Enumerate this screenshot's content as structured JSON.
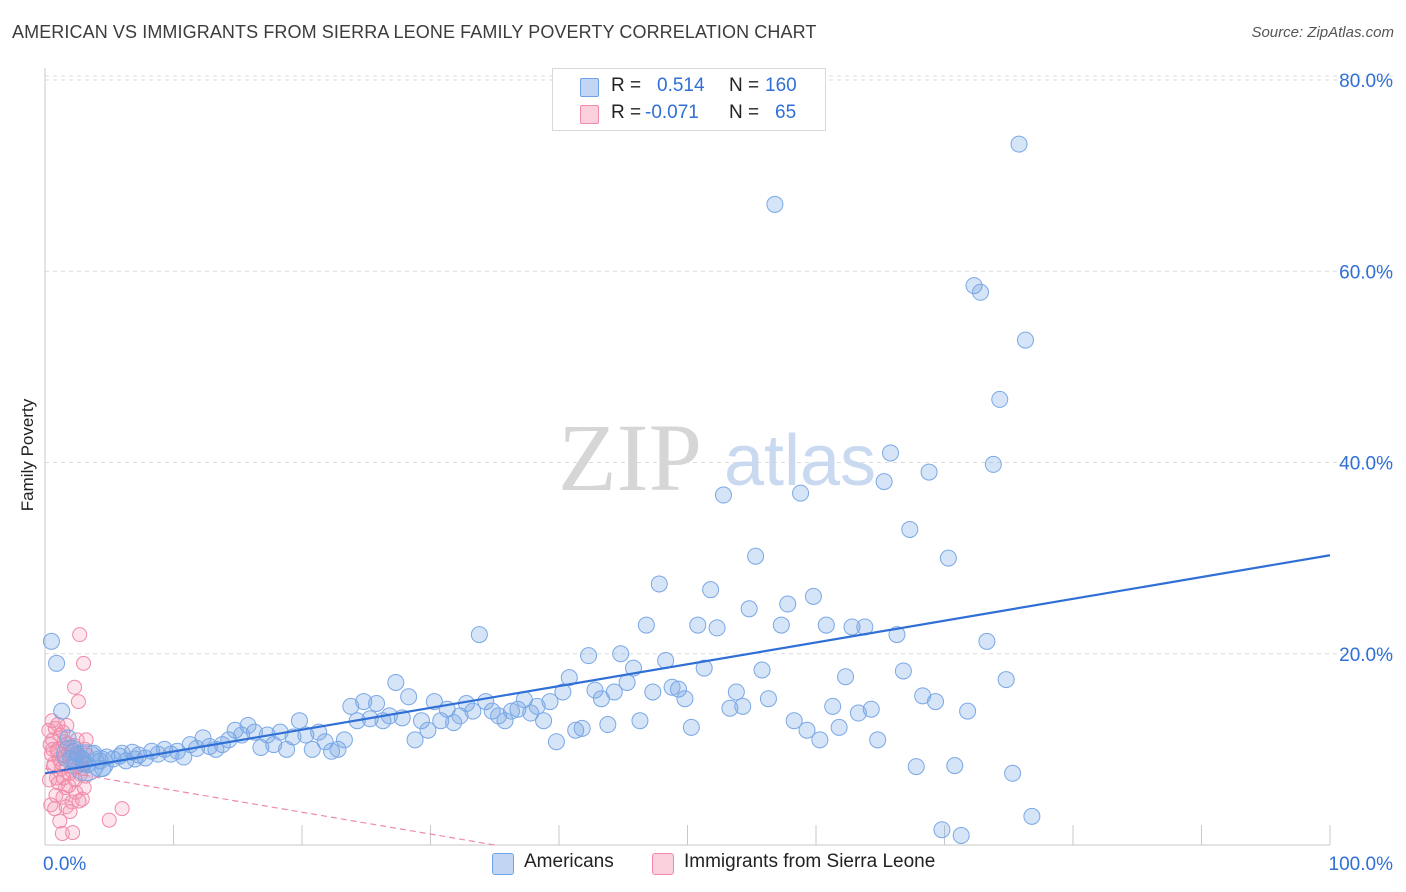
{
  "title": "AMERICAN VS IMMIGRANTS FROM SIERRA LEONE FAMILY POVERTY CORRELATION CHART",
  "source": "Source: ZipAtlas.com",
  "watermark": {
    "zip": "ZIP",
    "atlas": "atlas"
  },
  "legend_top": [
    {
      "r_label": "R =",
      "r_value": "0.514",
      "n_label": "N =",
      "n_value": "160",
      "color": "#6fa3e8"
    },
    {
      "r_label": "R =",
      "r_value": "-0.071",
      "n_label": "N =",
      "n_value": "65",
      "color": "#f08aa8"
    }
  ],
  "legend_bottom": [
    {
      "label": "Americans",
      "color": "#6fa3e8"
    },
    {
      "label": "Immigrants from Sierra Leone",
      "color": "#f08aa8"
    }
  ],
  "colors": {
    "blue": "#2f6fd6",
    "blue_fill": "rgba(120,165,230,0.30)",
    "pink": "#ee6f96",
    "pink_fill": "rgba(245,150,180,0.25)",
    "grid": "#dcdcdc"
  },
  "chart_data": {
    "type": "scatter",
    "title": "AMERICAN VS IMMIGRANTS FROM SIERRA LEONE FAMILY POVERTY CORRELATION CHART",
    "xlabel": "",
    "ylabel": "Family Poverty",
    "xlim": [
      0,
      100
    ],
    "ylim": [
      0,
      80
    ],
    "x_tick_labels": [
      "0.0%",
      "100.0%"
    ],
    "y_ticks": [
      20,
      40,
      60,
      80
    ],
    "y_tick_labels": [
      "20.0%",
      "40.0%",
      "60.0%",
      "80.0%"
    ],
    "grid": true,
    "series": [
      {
        "name": "Americans",
        "r": 0.514,
        "n": 160,
        "trend": {
          "x": [
            0,
            100
          ],
          "y": [
            7.5,
            30.3
          ]
        },
        "points": [
          [
            0.5,
            21.3
          ],
          [
            0.9,
            19.0
          ],
          [
            1.3,
            14.0
          ],
          [
            1.8,
            11.2
          ],
          [
            2.2,
            9.8
          ],
          [
            2.5,
            9.5
          ],
          [
            2.9,
            9.0
          ],
          [
            3.3,
            8.4
          ],
          [
            3.8,
            9.6
          ],
          [
            4.3,
            8.8
          ],
          [
            4.8,
            9.2
          ],
          [
            5.3,
            9.0
          ],
          [
            5.8,
            9.3
          ],
          [
            6.3,
            8.8
          ],
          [
            6.8,
            9.7
          ],
          [
            7.3,
            9.4
          ],
          [
            7.8,
            9.1
          ],
          [
            8.3,
            9.8
          ],
          [
            8.8,
            9.5
          ],
          [
            9.3,
            10.0
          ],
          [
            9.8,
            9.5
          ],
          [
            10.3,
            9.8
          ],
          [
            10.8,
            9.2
          ],
          [
            11.3,
            10.5
          ],
          [
            11.8,
            10.1
          ],
          [
            12.3,
            11.2
          ],
          [
            12.8,
            10.3
          ],
          [
            13.3,
            10.0
          ],
          [
            13.8,
            10.5
          ],
          [
            14.3,
            11.0
          ],
          [
            14.8,
            12.0
          ],
          [
            15.3,
            11.5
          ],
          [
            15.8,
            12.5
          ],
          [
            16.3,
            11.8
          ],
          [
            16.8,
            10.2
          ],
          [
            17.3,
            11.5
          ],
          [
            17.8,
            10.5
          ],
          [
            18.3,
            11.8
          ],
          [
            18.8,
            10.0
          ],
          [
            19.3,
            11.3
          ],
          [
            19.8,
            13.0
          ],
          [
            20.3,
            11.5
          ],
          [
            20.8,
            10.0
          ],
          [
            21.3,
            11.8
          ],
          [
            21.8,
            10.8
          ],
          [
            22.3,
            9.8
          ],
          [
            22.8,
            10.0
          ],
          [
            23.3,
            11.0
          ],
          [
            23.8,
            14.5
          ],
          [
            24.3,
            13.0
          ],
          [
            24.8,
            15.0
          ],
          [
            25.3,
            13.2
          ],
          [
            25.8,
            14.8
          ],
          [
            26.3,
            13.0
          ],
          [
            26.8,
            13.5
          ],
          [
            27.3,
            17.0
          ],
          [
            27.8,
            13.3
          ],
          [
            28.3,
            15.5
          ],
          [
            28.8,
            11.0
          ],
          [
            29.3,
            13.0
          ],
          [
            29.8,
            12.0
          ],
          [
            30.3,
            15.0
          ],
          [
            30.8,
            13.0
          ],
          [
            31.3,
            14.2
          ],
          [
            31.8,
            12.8
          ],
          [
            32.3,
            13.5
          ],
          [
            32.8,
            14.8
          ],
          [
            33.3,
            14.0
          ],
          [
            33.8,
            22.0
          ],
          [
            34.3,
            15.0
          ],
          [
            34.8,
            14.0
          ],
          [
            35.3,
            13.5
          ],
          [
            35.8,
            13.0
          ],
          [
            36.3,
            14.0
          ],
          [
            36.8,
            14.2
          ],
          [
            37.3,
            15.2
          ],
          [
            37.8,
            13.8
          ],
          [
            38.3,
            14.5
          ],
          [
            38.8,
            13.0
          ],
          [
            39.3,
            15.0
          ],
          [
            39.8,
            10.8
          ],
          [
            40.3,
            16.0
          ],
          [
            40.8,
            17.5
          ],
          [
            41.3,
            12.0
          ],
          [
            41.8,
            12.2
          ],
          [
            42.3,
            19.8
          ],
          [
            42.8,
            16.2
          ],
          [
            43.3,
            15.3
          ],
          [
            43.8,
            12.6
          ],
          [
            44.3,
            16.0
          ],
          [
            44.8,
            20.0
          ],
          [
            45.3,
            17.0
          ],
          [
            45.8,
            18.5
          ],
          [
            46.3,
            13.0
          ],
          [
            46.8,
            23.0
          ],
          [
            47.3,
            16.0
          ],
          [
            47.8,
            27.3
          ],
          [
            48.3,
            19.3
          ],
          [
            48.8,
            16.5
          ],
          [
            49.3,
            16.3
          ],
          [
            49.8,
            15.3
          ],
          [
            50.3,
            12.3
          ],
          [
            50.8,
            23.0
          ],
          [
            51.3,
            18.5
          ],
          [
            51.8,
            26.7
          ],
          [
            52.3,
            22.7
          ],
          [
            52.8,
            36.6
          ],
          [
            53.3,
            14.3
          ],
          [
            53.8,
            16.0
          ],
          [
            54.3,
            14.5
          ],
          [
            54.8,
            24.7
          ],
          [
            55.3,
            30.2
          ],
          [
            55.8,
            18.3
          ],
          [
            56.3,
            15.3
          ],
          [
            56.8,
            67.0
          ],
          [
            57.3,
            23.0
          ],
          [
            57.8,
            25.2
          ],
          [
            58.3,
            13.0
          ],
          [
            58.8,
            36.8
          ],
          [
            59.3,
            12.0
          ],
          [
            59.8,
            26.0
          ],
          [
            60.3,
            11.0
          ],
          [
            60.8,
            23.0
          ],
          [
            61.3,
            14.5
          ],
          [
            61.8,
            12.3
          ],
          [
            62.3,
            17.6
          ],
          [
            62.8,
            22.8
          ],
          [
            63.3,
            13.8
          ],
          [
            63.8,
            22.8
          ],
          [
            64.3,
            14.2
          ],
          [
            64.8,
            11.0
          ],
          [
            65.3,
            38.0
          ],
          [
            65.8,
            41.0
          ],
          [
            66.3,
            22.0
          ],
          [
            66.8,
            18.2
          ],
          [
            67.3,
            33.0
          ],
          [
            67.8,
            8.2
          ],
          [
            68.3,
            15.6
          ],
          [
            68.8,
            39.0
          ],
          [
            69.3,
            15.0
          ],
          [
            69.8,
            1.6
          ],
          [
            70.3,
            30.0
          ],
          [
            70.8,
            8.3
          ],
          [
            71.3,
            1.0
          ],
          [
            71.8,
            14.0
          ],
          [
            72.3,
            58.5
          ],
          [
            72.8,
            57.8
          ],
          [
            73.3,
            21.3
          ],
          [
            73.8,
            39.8
          ],
          [
            74.3,
            46.6
          ],
          [
            74.8,
            17.3
          ],
          [
            75.3,
            7.5
          ],
          [
            75.8,
            73.3
          ],
          [
            76.3,
            52.8
          ],
          [
            76.8,
            3.0
          ],
          [
            3.0,
            8.5
          ],
          [
            4.5,
            8.0
          ],
          [
            2.0,
            9.0
          ],
          [
            6.0,
            9.6
          ],
          [
            7.0,
            9.0
          ]
        ]
      },
      {
        "name": "Immigrants from Sierra Leone",
        "r": -0.071,
        "n": 65,
        "trend": {
          "x": [
            0,
            35
          ],
          "y": [
            8.0,
            0.0
          ]
        },
        "points": [
          [
            0.3,
            12.0
          ],
          [
            0.4,
            10.5
          ],
          [
            0.5,
            9.5
          ],
          [
            0.6,
            11.0
          ],
          [
            0.7,
            8.5
          ],
          [
            0.8,
            12.2
          ],
          [
            0.9,
            7.0
          ],
          [
            1.0,
            10.0
          ],
          [
            1.1,
            9.0
          ],
          [
            1.2,
            11.5
          ],
          [
            1.3,
            8.0
          ],
          [
            1.4,
            5.0
          ],
          [
            1.5,
            10.8
          ],
          [
            1.6,
            6.0
          ],
          [
            1.7,
            12.5
          ],
          [
            1.8,
            9.5
          ],
          [
            1.9,
            7.5
          ],
          [
            2.0,
            10.2
          ],
          [
            2.1,
            4.5
          ],
          [
            2.2,
            8.8
          ],
          [
            2.3,
            16.5
          ],
          [
            2.4,
            5.5
          ],
          [
            2.5,
            11.0
          ],
          [
            2.6,
            15.0
          ],
          [
            2.7,
            22.0
          ],
          [
            2.8,
            9.0
          ],
          [
            2.9,
            4.8
          ],
          [
            3.0,
            19.0
          ],
          [
            3.1,
            10.0
          ],
          [
            3.2,
            11.0
          ],
          [
            0.35,
            6.8
          ],
          [
            0.45,
            4.2
          ],
          [
            0.55,
            13.0
          ],
          [
            0.65,
            8.2
          ],
          [
            0.75,
            3.8
          ],
          [
            0.85,
            5.2
          ],
          [
            0.95,
            9.8
          ],
          [
            1.05,
            6.5
          ],
          [
            1.15,
            2.5
          ],
          [
            1.25,
            8.6
          ],
          [
            1.35,
            1.2
          ],
          [
            1.45,
            7.0
          ],
          [
            1.55,
            9.3
          ],
          [
            1.65,
            4.0
          ],
          [
            1.75,
            10.6
          ],
          [
            1.85,
            6.2
          ],
          [
            1.95,
            3.5
          ],
          [
            2.05,
            7.8
          ],
          [
            2.15,
            1.3
          ],
          [
            2.25,
            10.4
          ],
          [
            2.35,
            6.8
          ],
          [
            2.45,
            9.6
          ],
          [
            2.55,
            8.2
          ],
          [
            2.65,
            4.6
          ],
          [
            2.75,
            7.4
          ],
          [
            2.85,
            9.2
          ],
          [
            2.95,
            8.0
          ],
          [
            3.05,
            6.0
          ],
          [
            3.15,
            7.2
          ],
          [
            3.25,
            9.4
          ],
          [
            5.0,
            2.6
          ],
          [
            6.0,
            3.8
          ],
          [
            0.6,
            10.0
          ],
          [
            1.0,
            12.6
          ],
          [
            1.4,
            11.8
          ]
        ]
      }
    ]
  }
}
